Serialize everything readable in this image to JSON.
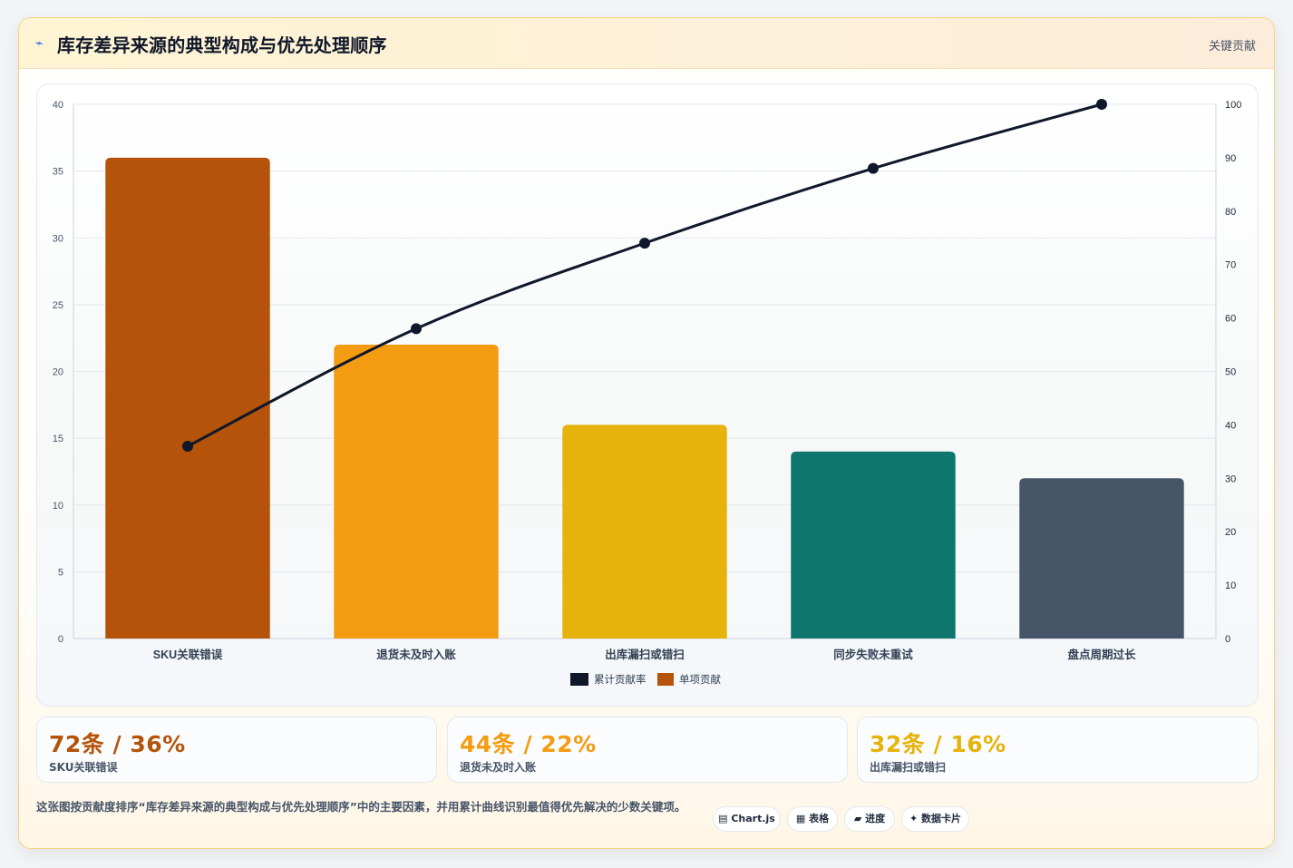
{
  "header": {
    "icon": "pulse-icon",
    "title": "库存差异来源的典型构成与优先处理顺序",
    "tag": "关键贡献"
  },
  "chart_data": {
    "type": "bar",
    "categories": [
      "SKU关联错误",
      "退货未及时入账",
      "出库漏扫或错扫",
      "同步失败未重试",
      "盘点周期过长"
    ],
    "series": [
      {
        "name": "单项贡献",
        "type": "bar",
        "axis": "left",
        "values": [
          36,
          22,
          16,
          14,
          12
        ],
        "colors": [
          "#b45309",
          "#f39c12",
          "#e6b30d",
          "#0f766e",
          "#475569"
        ]
      },
      {
        "name": "累计贡献率",
        "type": "line",
        "axis": "right",
        "values": [
          36,
          58,
          74,
          88,
          100
        ],
        "color": "#0f172a"
      }
    ],
    "y_left": {
      "min": 0,
      "max": 40,
      "ticks": [
        0,
        5,
        10,
        15,
        20,
        25,
        30,
        35,
        40
      ]
    },
    "y_right": {
      "min": 0,
      "max": 100,
      "ticks": [
        0,
        10,
        20,
        30,
        40,
        50,
        60,
        70,
        80,
        90,
        100
      ]
    },
    "grid": true,
    "legend": {
      "position": "bottom",
      "items": [
        {
          "label": "累计贡献率",
          "color": "#0f172a"
        },
        {
          "label": "单项贡献",
          "color": "#b45309"
        }
      ]
    }
  },
  "kpis": [
    {
      "value": "72条 / 36%",
      "label": "SKU关联错误",
      "color": "#b45309"
    },
    {
      "value": "44条 / 22%",
      "label": "退货未及时入账",
      "color": "#f39c12"
    },
    {
      "value": "32条 / 16%",
      "label": "出库漏扫或错扫",
      "color": "#e6b30d"
    }
  ],
  "footer": {
    "note": "这张图按贡献度排序“库存差异来源的典型构成与优先处理顺序”中的主要因素，并用累计曲线识别最值得优先解决的少数关键项。",
    "chips": [
      "▤ Chart.js",
      "▦ 表格",
      "▰ 进度",
      "✦ 数据卡片"
    ]
  }
}
